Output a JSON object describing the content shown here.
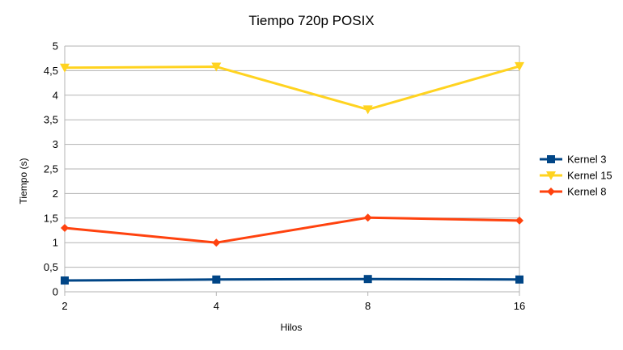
{
  "chart_data": {
    "type": "line",
    "title": "Tiempo 720p POSIX",
    "xlabel": "Hilos",
    "ylabel": "Tiempo (s)",
    "categories": [
      "2",
      "4",
      "8",
      "16"
    ],
    "ylim": [
      0,
      5
    ],
    "y_ticks": [
      "0",
      "0,5",
      "1",
      "1,5",
      "2",
      "2,5",
      "3",
      "3,5",
      "4",
      "4,5",
      "5"
    ],
    "grid": "horizontal",
    "legend_position": "right",
    "series": [
      {
        "name": "Kernel 3",
        "color": "#004586",
        "marker": "square",
        "values": [
          0.23,
          0.25,
          0.26,
          0.25
        ]
      },
      {
        "name": "Kernel 15",
        "color": "#ffd320",
        "marker": "triangle-down",
        "values": [
          4.56,
          4.58,
          3.71,
          4.59
        ]
      },
      {
        "name": "Kernel 8",
        "color": "#ff420e",
        "marker": "diamond",
        "values": [
          1.3,
          1.0,
          1.51,
          1.45
        ]
      }
    ]
  }
}
